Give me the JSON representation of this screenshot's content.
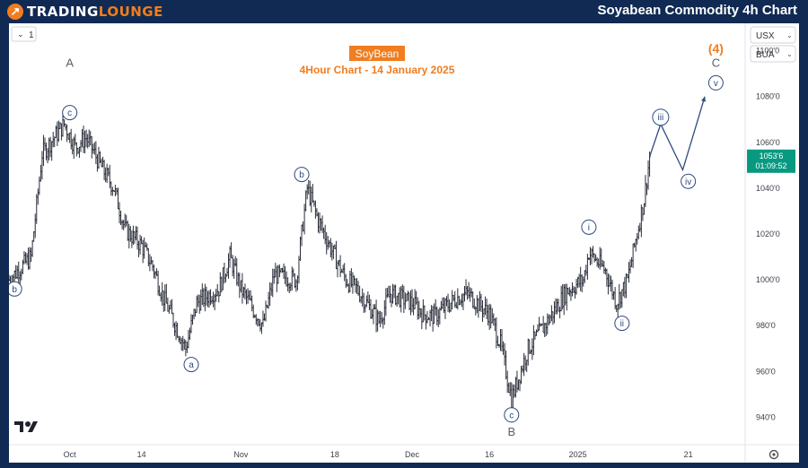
{
  "header": {
    "logo_glyph": "↗",
    "brand_part1": "TRADING",
    "brand_part2": "LOUNGE",
    "page_title": "Soyabean Commodity 4h Chart"
  },
  "toolbar": {
    "interval_value": "1",
    "currency": "USX",
    "unit": "BUA"
  },
  "chart_title": {
    "symbol": "SoyBean",
    "subtitle": "4Hour Chart - 14 January 2025"
  },
  "price_tag": {
    "price": "1053'6",
    "countdown": "01:09:52"
  },
  "icons": {
    "tradingview": "tradingview-logo-icon",
    "settings": "gear-icon"
  },
  "colors": {
    "background": "#102a53",
    "accent": "#f07d1f",
    "wave_blue": "#2e4a80",
    "price_tag": "#089981"
  },
  "chart_data": {
    "type": "candlestick",
    "title": "SoyBean",
    "subtitle": "4Hour Chart - 14 January 2025",
    "ylim": [
      928,
      1112
    ],
    "y_ticks": [
      "1100'0",
      "1080'0",
      "1060'0",
      "1040'0",
      "1020'0",
      "1000'0",
      "980'0",
      "960'0",
      "940'0"
    ],
    "y_tick_values": [
      1100,
      1080,
      1060,
      1040,
      1020,
      1000,
      980,
      960,
      940
    ],
    "x_ticks": [
      "Oct",
      "14",
      "Nov",
      "18",
      "Dec",
      "16",
      "2025",
      "21"
    ],
    "x_tick_dates": [
      "2024-10-01",
      "2024-10-14",
      "2024-11-01",
      "2024-11-18",
      "2024-12-02",
      "2024-12-16",
      "2025-01-01",
      "2025-01-21"
    ],
    "x_range": [
      "2024-09-20",
      "2025-01-30"
    ],
    "last_date": "2025-01-14",
    "price_path": [
      [
        "2024-09-20",
        1000
      ],
      [
        "2024-09-24",
        1010
      ],
      [
        "2024-09-26",
        1055
      ],
      [
        "2024-09-30",
        1068
      ],
      [
        "2024-10-02",
        1058
      ],
      [
        "2024-10-04",
        1062
      ],
      [
        "2024-10-07",
        1048
      ],
      [
        "2024-10-09",
        1040
      ],
      [
        "2024-10-11",
        1022
      ],
      [
        "2024-10-14",
        1015
      ],
      [
        "2024-10-16",
        1006
      ],
      [
        "2024-10-18",
        992
      ],
      [
        "2024-10-22",
        970
      ],
      [
        "2024-10-24",
        990
      ],
      [
        "2024-10-28",
        996
      ],
      [
        "2024-10-30",
        1010
      ],
      [
        "2024-11-01",
        996
      ],
      [
        "2024-11-05",
        980
      ],
      [
        "2024-11-07",
        1002
      ],
      [
        "2024-11-11",
        1000
      ],
      [
        "2024-11-13",
        1040
      ],
      [
        "2024-11-15",
        1026
      ],
      [
        "2024-11-18",
        1010
      ],
      [
        "2024-11-20",
        1000
      ],
      [
        "2024-11-22",
        996
      ],
      [
        "2024-11-26",
        982
      ],
      [
        "2024-11-28",
        994
      ],
      [
        "2024-12-02",
        990
      ],
      [
        "2024-12-04",
        985
      ],
      [
        "2024-12-06",
        984
      ],
      [
        "2024-12-10",
        992
      ],
      [
        "2024-12-12",
        994
      ],
      [
        "2024-12-16",
        985
      ],
      [
        "2024-12-18",
        972
      ],
      [
        "2024-12-20",
        948
      ],
      [
        "2024-12-23",
        970
      ],
      [
        "2024-12-26",
        980
      ],
      [
        "2024-12-30",
        995
      ],
      [
        "2025-01-02",
        1000
      ],
      [
        "2025-01-03",
        1012
      ],
      [
        "2025-01-06",
        1004
      ],
      [
        "2025-01-08",
        990
      ],
      [
        "2025-01-10",
        1000
      ],
      [
        "2025-01-13",
        1035
      ],
      [
        "2025-01-14",
        1053.75
      ]
    ],
    "projection": [
      [
        "2025-01-14",
        1053.75
      ],
      [
        "2025-01-16",
        1068
      ],
      [
        "2025-01-20",
        1048
      ],
      [
        "2025-01-24",
        1080
      ]
    ],
    "wave_labels": [
      {
        "text": "A",
        "date": "2024-10-01",
        "price": 1093,
        "style": "letter"
      },
      {
        "text": "c",
        "date": "2024-10-01",
        "price": 1073,
        "style": "circle"
      },
      {
        "text": "b",
        "date": "2024-09-21",
        "price": 996,
        "style": "circle"
      },
      {
        "text": "a",
        "date": "2024-10-23",
        "price": 963,
        "style": "circle"
      },
      {
        "text": "b",
        "date": "2024-11-12",
        "price": 1046,
        "style": "circle"
      },
      {
        "text": "c",
        "date": "2024-12-20",
        "price": 941,
        "style": "circle"
      },
      {
        "text": "B",
        "date": "2024-12-20",
        "price": 932,
        "style": "letter"
      },
      {
        "text": "i",
        "date": "2025-01-03",
        "price": 1023,
        "style": "circle"
      },
      {
        "text": "ii",
        "date": "2025-01-09",
        "price": 981,
        "style": "circle"
      },
      {
        "text": "iii",
        "date": "2025-01-16",
        "price": 1071,
        "style": "circle"
      },
      {
        "text": "iv",
        "date": "2025-01-21",
        "price": 1043,
        "style": "circle"
      },
      {
        "text": "v",
        "date": "2025-01-26",
        "price": 1086,
        "style": "circle"
      },
      {
        "text": "C",
        "date": "2025-01-26",
        "price": 1093,
        "style": "letter"
      },
      {
        "text": "(4)",
        "date": "2025-01-26",
        "price": 1099,
        "style": "orange"
      }
    ]
  }
}
